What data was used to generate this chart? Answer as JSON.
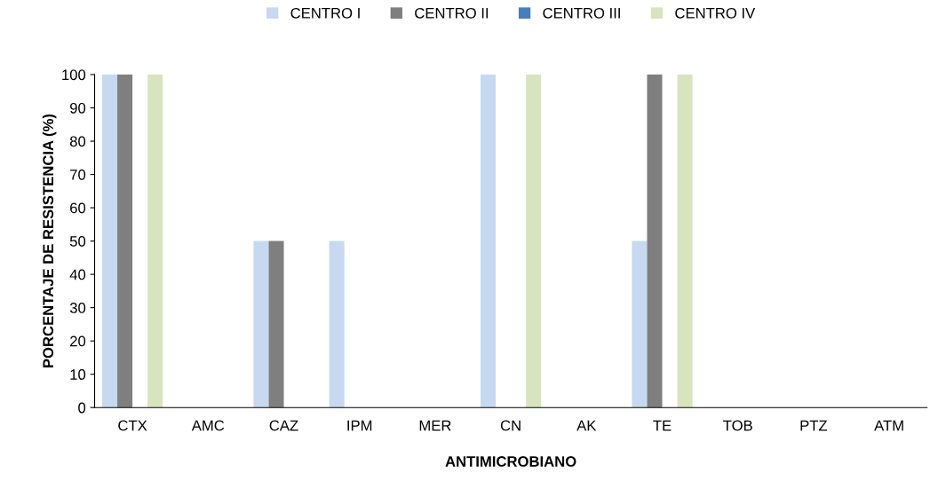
{
  "chart_data": {
    "type": "bar",
    "xlabel": "ANTIMICROBIANO",
    "ylabel": "PORCENTAJE DE RESISTENCIA (%)",
    "categories": [
      "CTX",
      "AMC",
      "CAZ",
      "IPM",
      "MER",
      "CN",
      "AK",
      "TE",
      "TOB",
      "PTZ",
      "ATM"
    ],
    "series": [
      {
        "name": "CENTRO I",
        "color": "#c6d9f1",
        "values": [
          100,
          0,
          50,
          50,
          0,
          100,
          0,
          50,
          0,
          0,
          0
        ]
      },
      {
        "name": "CENTRO II",
        "color": "#7f7f7f",
        "values": [
          100,
          0,
          50,
          0,
          0,
          0,
          0,
          100,
          0,
          0,
          0
        ]
      },
      {
        "name": "CENTRO III",
        "color": "#4a7ebb",
        "values": [
          0,
          0,
          0,
          0,
          0,
          0,
          0,
          0,
          0,
          0,
          0
        ]
      },
      {
        "name": "CENTRO IV",
        "color": "#d7e4bd",
        "values": [
          100,
          0,
          0,
          0,
          0,
          100,
          0,
          100,
          0,
          0,
          0
        ]
      }
    ],
    "ylim": [
      0,
      100
    ],
    "yticks": [
      0,
      10,
      20,
      30,
      40,
      50,
      60,
      70,
      80,
      90,
      100
    ],
    "grid": false,
    "legend": "top"
  }
}
